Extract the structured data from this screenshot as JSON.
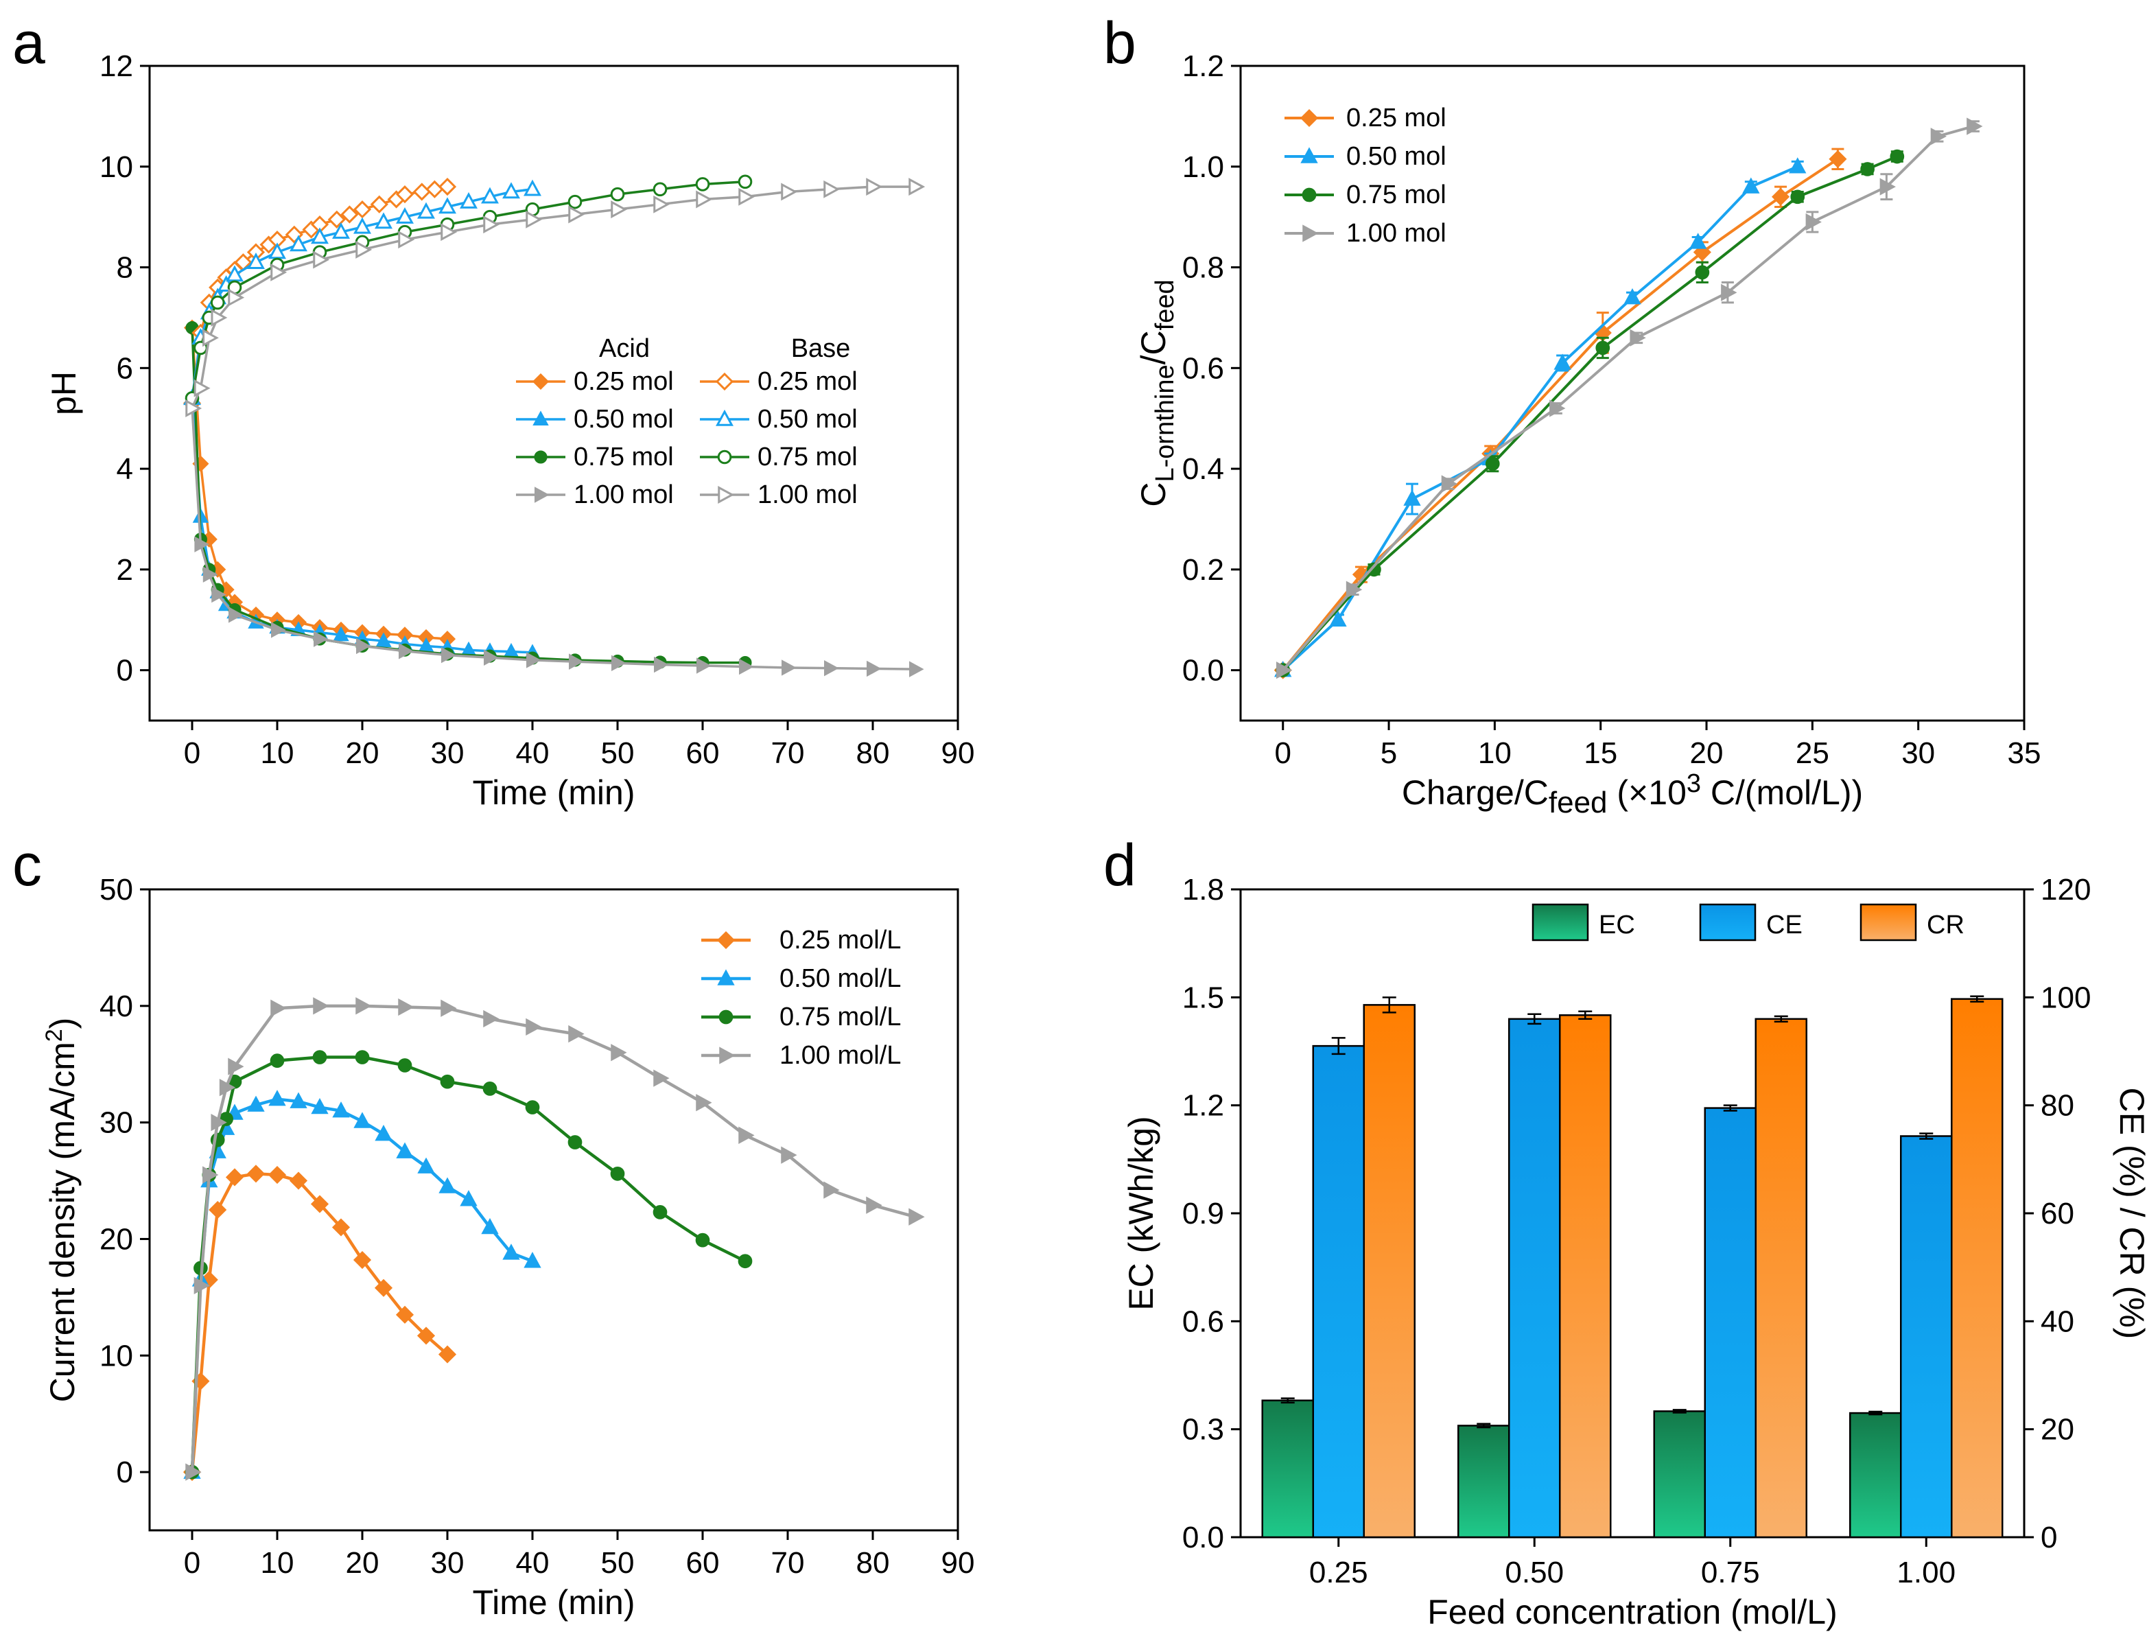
{
  "colors": {
    "c025": "#f58220",
    "c050": "#1aa3f0",
    "c075": "#1b7f1b",
    "c100": "#a0a0a0",
    "ec_top": "#137a4a",
    "ec_bottom": "#1fc98a",
    "ce": "#0a9ef2",
    "cr_top": "#ff7e00",
    "cr_bottom": "#f9b06a"
  },
  "chart_data": [
    {
      "panel": "a",
      "type": "line",
      "xlabel": "Time (min)",
      "ylabel": "pH",
      "xlim": [
        -5,
        90
      ],
      "ylim": [
        -1,
        12
      ],
      "xticks": [
        0,
        10,
        20,
        30,
        40,
        50,
        60,
        70,
        80,
        90
      ],
      "yticks": [
        0,
        2,
        4,
        6,
        8,
        10,
        12
      ],
      "legend_headers": {
        "acid": "Acid",
        "base": "Base"
      },
      "series": [
        {
          "name": "0.25 mol",
          "group": "Acid",
          "color_key": "c025",
          "marker": "diamond",
          "filled": true,
          "x": [
            0,
            1,
            2,
            3,
            4,
            5,
            7.5,
            10,
            12.5,
            15,
            17.5,
            20,
            22.5,
            25,
            27.5,
            30
          ],
          "y": [
            6.8,
            4.1,
            2.6,
            2.0,
            1.6,
            1.35,
            1.1,
            1.0,
            0.95,
            0.85,
            0.8,
            0.75,
            0.72,
            0.7,
            0.65,
            0.62
          ]
        },
        {
          "name": "0.50 mol",
          "group": "Acid",
          "color_key": "c050",
          "marker": "triangle",
          "filled": true,
          "x": [
            0,
            1,
            2,
            3,
            4,
            5,
            7.5,
            10,
            12.5,
            15,
            17.5,
            20,
            22.5,
            25,
            27.5,
            30,
            32.5,
            35,
            37.5,
            40
          ],
          "y": [
            5.4,
            3.05,
            2.0,
            1.55,
            1.3,
            1.15,
            0.95,
            0.85,
            0.8,
            0.75,
            0.7,
            0.62,
            0.58,
            0.52,
            0.48,
            0.45,
            0.4,
            0.38,
            0.37,
            0.35
          ]
        },
        {
          "name": "0.75 mol",
          "group": "Acid",
          "color_key": "c075",
          "marker": "circle",
          "filled": true,
          "x": [
            0,
            1,
            2,
            3,
            5,
            10,
            15,
            20,
            25,
            30,
            35,
            40,
            45,
            50,
            55,
            60,
            65
          ],
          "y": [
            6.8,
            2.6,
            2.0,
            1.6,
            1.2,
            0.85,
            0.62,
            0.48,
            0.4,
            0.32,
            0.28,
            0.24,
            0.2,
            0.18,
            0.16,
            0.15,
            0.15
          ]
        },
        {
          "name": "1.00 mol",
          "group": "Acid",
          "color_key": "c100",
          "marker": "triangle-right",
          "filled": true,
          "x": [
            0,
            1,
            2,
            3,
            5,
            10,
            15,
            20,
            25,
            30,
            35,
            40,
            45,
            50,
            55,
            60,
            65,
            70,
            75,
            80,
            85
          ],
          "y": [
            5.2,
            2.5,
            1.9,
            1.5,
            1.1,
            0.8,
            0.62,
            0.48,
            0.38,
            0.3,
            0.25,
            0.2,
            0.17,
            0.14,
            0.11,
            0.09,
            0.07,
            0.05,
            0.04,
            0.03,
            0.02
          ]
        },
        {
          "name": "0.25 mol",
          "group": "Base",
          "color_key": "c025",
          "marker": "diamond",
          "filled": false,
          "x": [
            0,
            1,
            2,
            3,
            4,
            5,
            6,
            7.5,
            9,
            10,
            12,
            14,
            15,
            17,
            18.5,
            20,
            22,
            24,
            25,
            27,
            28.5,
            30
          ],
          "y": [
            5.3,
            6.7,
            7.3,
            7.6,
            7.8,
            7.95,
            8.1,
            8.3,
            8.45,
            8.55,
            8.65,
            8.75,
            8.85,
            8.95,
            9.05,
            9.15,
            9.25,
            9.35,
            9.45,
            9.5,
            9.55,
            9.6
          ]
        },
        {
          "name": "0.50 mol",
          "group": "Base",
          "color_key": "c050",
          "marker": "triangle",
          "filled": false,
          "x": [
            0,
            1,
            2,
            3,
            4,
            5,
            7.5,
            10,
            12.5,
            15,
            17.5,
            20,
            22.5,
            25,
            27.5,
            30,
            32.5,
            35,
            37.5,
            40
          ],
          "y": [
            5.4,
            6.6,
            7.1,
            7.4,
            7.65,
            7.85,
            8.1,
            8.3,
            8.45,
            8.6,
            8.7,
            8.8,
            8.9,
            9.0,
            9.1,
            9.2,
            9.3,
            9.4,
            9.5,
            9.55
          ]
        },
        {
          "name": "0.75 mol",
          "group": "Base",
          "color_key": "c075",
          "marker": "circle",
          "filled": false,
          "x": [
            0,
            1,
            2,
            3,
            5,
            10,
            15,
            20,
            25,
            30,
            35,
            40,
            45,
            50,
            55,
            60,
            65
          ],
          "y": [
            5.4,
            6.4,
            7.0,
            7.3,
            7.6,
            8.05,
            8.3,
            8.5,
            8.7,
            8.85,
            9.0,
            9.15,
            9.3,
            9.45,
            9.55,
            9.65,
            9.7
          ]
        },
        {
          "name": "1.00 mol",
          "group": "Base",
          "color_key": "c100",
          "marker": "triangle-right",
          "filled": false,
          "x": [
            0,
            1,
            2,
            3,
            5,
            10,
            15,
            20,
            25,
            30,
            35,
            40,
            45,
            50,
            55,
            60,
            65,
            70,
            75,
            80,
            85
          ],
          "y": [
            5.2,
            5.6,
            6.6,
            7.0,
            7.4,
            7.9,
            8.15,
            8.35,
            8.55,
            8.7,
            8.85,
            8.95,
            9.05,
            9.15,
            9.25,
            9.35,
            9.4,
            9.5,
            9.55,
            9.6,
            9.6
          ]
        }
      ]
    },
    {
      "panel": "b",
      "type": "line",
      "xlabel_main": "Charge/C",
      "xlabel_sub": "feed",
      "xlabel_mid": " (×10",
      "xlabel_sup": "3",
      "xlabel_tail": " C/(mol/L))",
      "ylabel_main": "C",
      "ylabel_sub1": "L-ornthine",
      "ylabel_mid": "/C",
      "ylabel_sub2": "feed",
      "xlim": [
        -2,
        35
      ],
      "ylim": [
        -0.1,
        1.2
      ],
      "xticks": [
        0,
        5,
        10,
        15,
        20,
        25,
        30,
        35
      ],
      "yticks": [
        0.0,
        0.2,
        0.4,
        0.6,
        0.8,
        1.0,
        1.2
      ],
      "yticklabels": [
        "0.0",
        "0.2",
        "0.4",
        "0.6",
        "0.8",
        "1.0",
        "1.2"
      ],
      "series": [
        {
          "name": "0.25 mol",
          "color_key": "c025",
          "marker": "diamond",
          "x": [
            0,
            3.7,
            9.8,
            15.1,
            19.8,
            23.5,
            26.2
          ],
          "y": [
            0,
            0.19,
            0.43,
            0.67,
            0.83,
            0.94,
            1.015
          ],
          "err": [
            0,
            0.015,
            0.015,
            0.04,
            0.02,
            0.02,
            0.02
          ]
        },
        {
          "name": "0.50 mol",
          "color_key": "c050",
          "marker": "triangle",
          "x": [
            0,
            2.6,
            6.1,
            9.8,
            13.2,
            16.5,
            19.6,
            22.1,
            24.3
          ],
          "y": [
            0,
            0.1,
            0.34,
            0.42,
            0.61,
            0.74,
            0.85,
            0.96,
            1.0
          ],
          "err": [
            0,
            0.01,
            0.03,
            0.01,
            0.015,
            0.01,
            0.01,
            0.01,
            0.01
          ]
        },
        {
          "name": "0.75 mol",
          "color_key": "c075",
          "marker": "circle",
          "x": [
            0,
            4.3,
            9.9,
            15.1,
            19.8,
            24.3,
            27.6,
            29.0
          ],
          "y": [
            0,
            0.2,
            0.41,
            0.64,
            0.79,
            0.94,
            0.995,
            1.02
          ],
          "err": [
            0,
            0.01,
            0.015,
            0.02,
            0.02,
            0.01,
            0.01,
            0.01
          ]
        },
        {
          "name": "1.00 mol",
          "color_key": "c100",
          "marker": "triangle-right",
          "x": [
            0,
            3.3,
            7.8,
            12.9,
            16.7,
            21.0,
            25.0,
            28.5,
            30.9,
            32.6
          ],
          "y": [
            0,
            0.16,
            0.37,
            0.52,
            0.66,
            0.75,
            0.89,
            0.96,
            1.06,
            1.08
          ],
          "err": [
            0,
            0.01,
            0.01,
            0.01,
            0.01,
            0.02,
            0.02,
            0.025,
            0.01,
            0.01
          ]
        }
      ]
    },
    {
      "panel": "c",
      "type": "line",
      "xlabel": "Time (min)",
      "ylabel_main": "Current density (mA/cm",
      "ylabel_sup": "2",
      "ylabel_tail": ")",
      "xlim": [
        -5,
        90
      ],
      "ylim": [
        -5,
        50
      ],
      "xticks": [
        0,
        10,
        20,
        30,
        40,
        50,
        60,
        70,
        80,
        90
      ],
      "yticks": [
        0,
        10,
        20,
        30,
        40,
        50
      ],
      "series": [
        {
          "name": "0.25 mol/L",
          "color_key": "c025",
          "marker": "diamond",
          "x": [
            0,
            1,
            2,
            3,
            5,
            7.5,
            10,
            12.5,
            15,
            17.5,
            20,
            22.5,
            25,
            27.5,
            30
          ],
          "y": [
            0,
            7.8,
            16.5,
            22.5,
            25.3,
            25.6,
            25.5,
            25.0,
            23.0,
            21.0,
            18.2,
            15.8,
            13.5,
            11.7,
            10.1
          ]
        },
        {
          "name": "0.50 mol/L",
          "color_key": "c050",
          "marker": "triangle",
          "x": [
            0,
            1,
            2,
            3,
            4,
            5,
            7.5,
            10,
            12.5,
            15,
            17.5,
            20,
            22.5,
            25,
            27.5,
            30,
            32.5,
            35,
            37.5,
            40
          ],
          "y": [
            0,
            16.5,
            25.0,
            27.5,
            29.5,
            30.8,
            31.5,
            32.0,
            31.8,
            31.3,
            31.0,
            30.1,
            29.0,
            27.5,
            26.2,
            24.5,
            23.4,
            21.0,
            18.8,
            18.1
          ]
        },
        {
          "name": "0.75 mol/L",
          "color_key": "c075",
          "marker": "circle",
          "x": [
            0,
            1,
            2,
            3,
            4,
            5,
            10,
            15,
            20,
            25,
            30,
            35,
            40,
            45,
            50,
            55,
            60,
            65
          ],
          "y": [
            0,
            17.5,
            25.5,
            28.5,
            30.3,
            33.5,
            35.3,
            35.6,
            35.6,
            34.9,
            33.5,
            32.9,
            31.3,
            28.3,
            25.6,
            22.3,
            19.9,
            18.1
          ]
        },
        {
          "name": "1.00 mol/L",
          "color_key": "c100",
          "marker": "triangle-right",
          "x": [
            0,
            1,
            2,
            3,
            4,
            5,
            10,
            15,
            20,
            25,
            30,
            35,
            40,
            45,
            50,
            55,
            60,
            65,
            70,
            75,
            80,
            85
          ],
          "y": [
            0,
            16.0,
            25.5,
            30.0,
            33.0,
            34.8,
            39.8,
            40.0,
            40.0,
            39.9,
            39.8,
            38.9,
            38.2,
            37.6,
            36.0,
            33.8,
            31.7,
            28.9,
            27.2,
            24.2,
            22.9,
            21.9
          ]
        }
      ]
    },
    {
      "panel": "d",
      "type": "bar",
      "xlabel": "Feed concentration (mol/L)",
      "ylabel_left": "EC (kWh/kg)",
      "ylabel_right": "CE (%) / CR (%)",
      "categories": [
        "0.25",
        "0.50",
        "0.75",
        "1.00"
      ],
      "ylim_left": [
        0,
        1.8
      ],
      "ylim_right": [
        0,
        120
      ],
      "yticks_left": [
        "0.0",
        "0.3",
        "0.6",
        "0.9",
        "1.2",
        "1.5",
        "1.8"
      ],
      "yticks_right": [
        "0",
        "20",
        "40",
        "60",
        "80",
        "100",
        "120"
      ],
      "series": [
        {
          "name": "EC",
          "axis": "left",
          "values": [
            0.38,
            0.31,
            0.35,
            0.345
          ],
          "err": [
            0.006,
            0.005,
            0.004,
            0.004
          ]
        },
        {
          "name": "CE",
          "axis": "right",
          "values": [
            91.0,
            96.0,
            79.5,
            74.3
          ],
          "err": [
            1.5,
            0.9,
            0.5,
            0.5
          ]
        },
        {
          "name": "CR",
          "axis": "right",
          "values": [
            98.6,
            96.7,
            96.0,
            99.7
          ],
          "err": [
            1.4,
            0.7,
            0.5,
            0.5
          ]
        }
      ]
    }
  ],
  "panel_labels": [
    "a",
    "b",
    "c",
    "d"
  ]
}
